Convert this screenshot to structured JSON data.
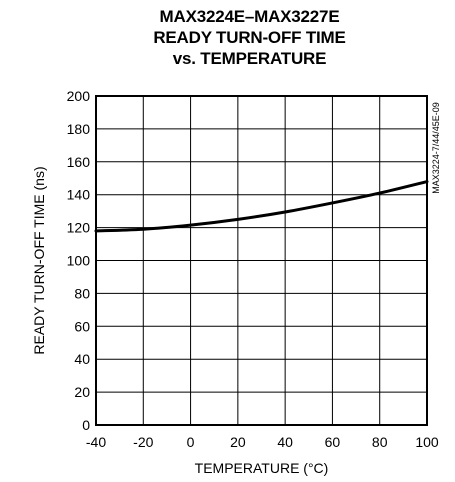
{
  "chart_data": {
    "type": "line",
    "title": [
      "MAX3224E–MAX3227E",
      "READY TURN-OFF TIME",
      "vs. TEMPERATURE"
    ],
    "xlabel": "TEMPERATURE (°C)",
    "ylabel": "READY TURN-OFF TIME (ns)",
    "xlim": [
      -40,
      100
    ],
    "ylim": [
      0,
      200
    ],
    "x_ticks": [
      -40,
      -20,
      0,
      20,
      40,
      60,
      80,
      100
    ],
    "y_ticks": [
      0,
      20,
      40,
      60,
      80,
      100,
      120,
      140,
      160,
      180,
      200
    ],
    "grid": true,
    "series": [
      {
        "x": [
          -40,
          -20,
          0,
          20,
          40,
          60,
          80,
          100
        ],
        "values": [
          118,
          119,
          121.5,
          125,
          129.5,
          135,
          141,
          148
        ]
      }
    ],
    "side_note": "MAX3224-7/44/45E-09"
  }
}
